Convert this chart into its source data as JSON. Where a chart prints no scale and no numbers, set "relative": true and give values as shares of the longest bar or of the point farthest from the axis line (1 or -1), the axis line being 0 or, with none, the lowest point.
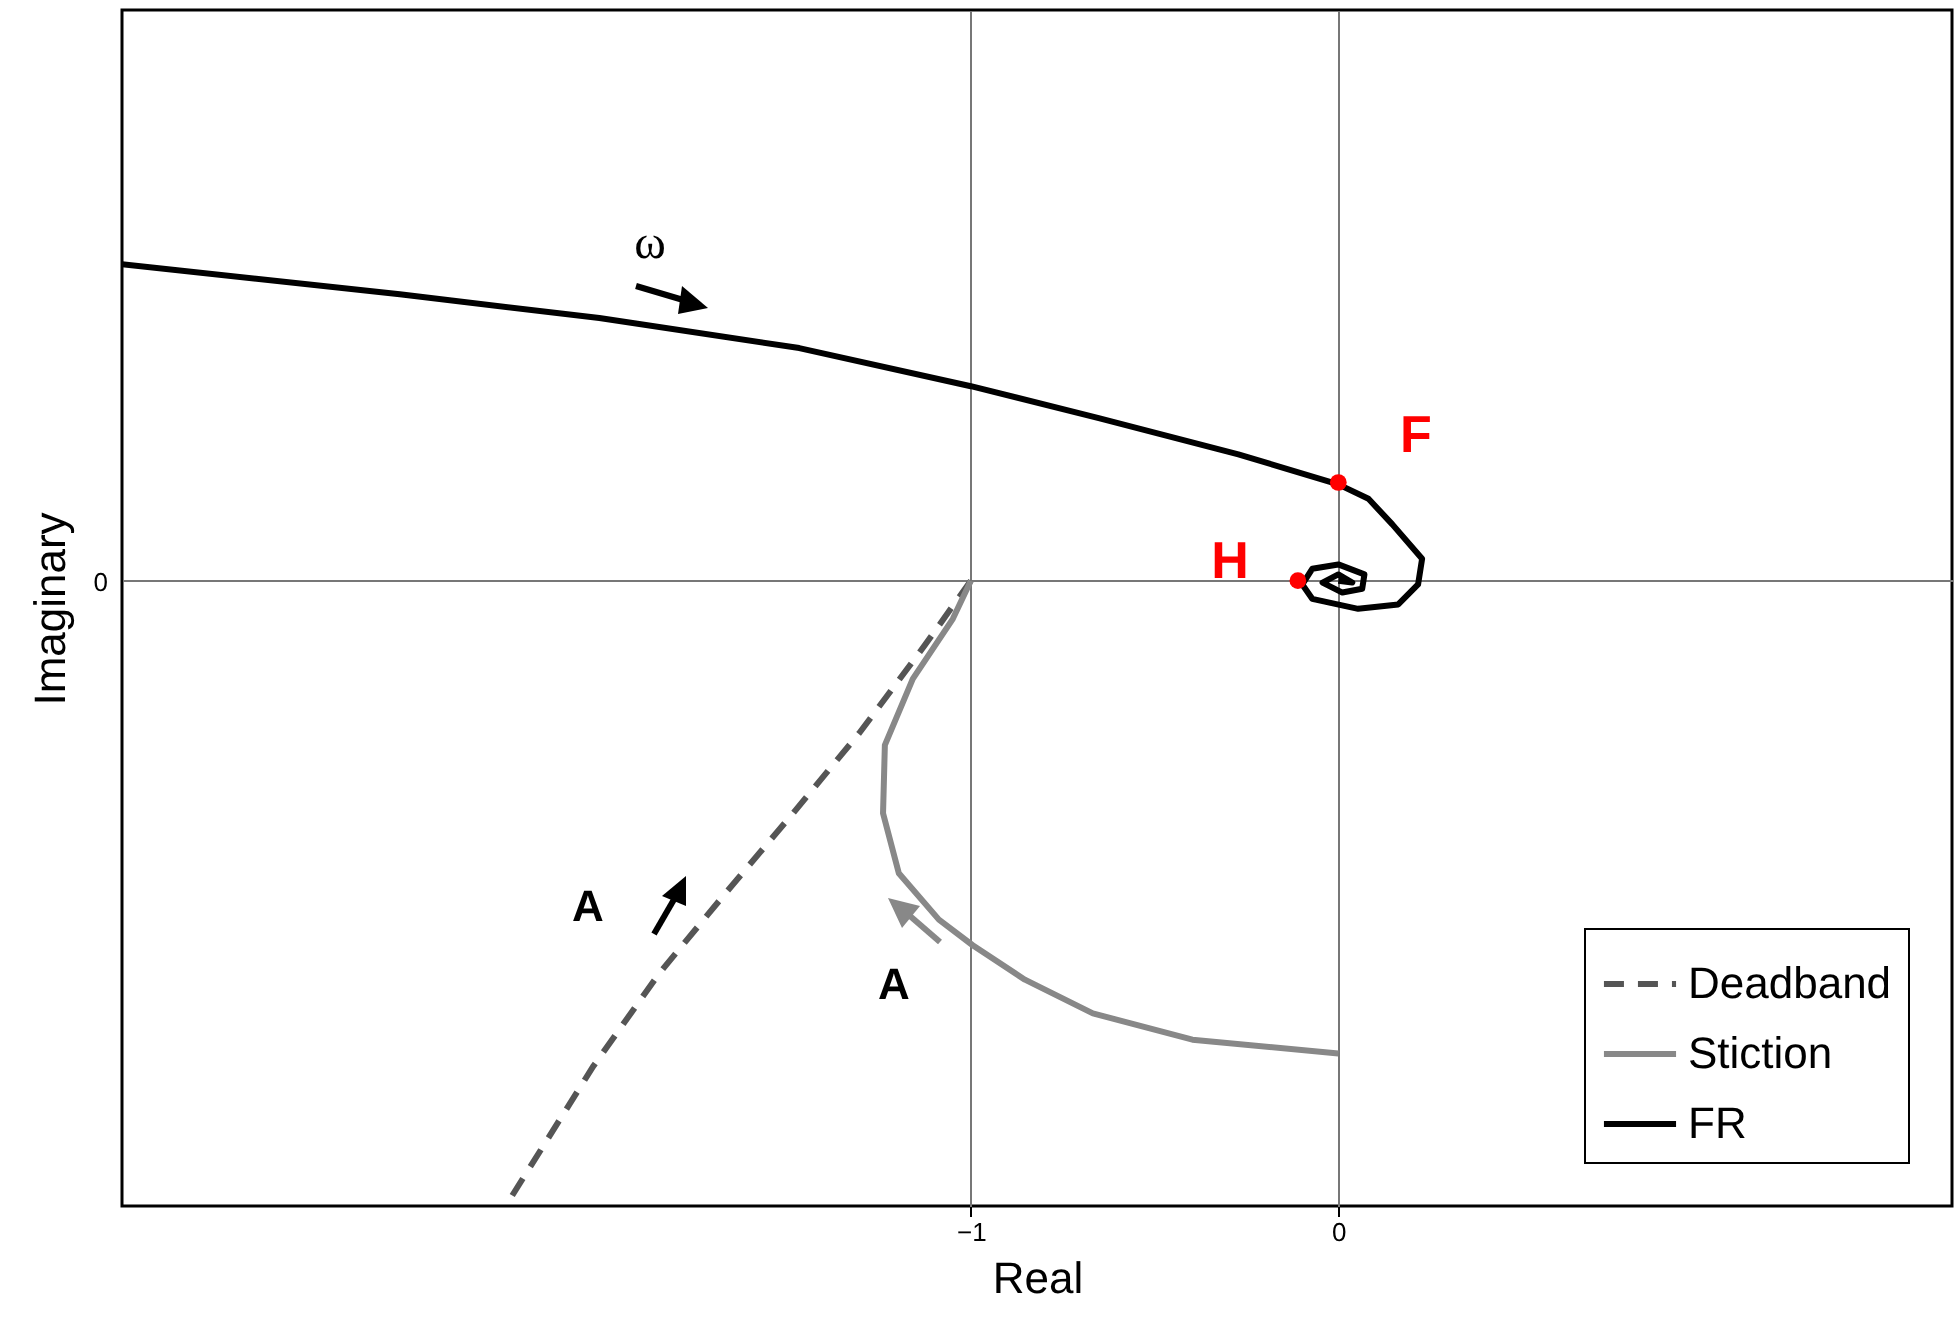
{
  "chart_data": {
    "type": "line",
    "xlabel": "Real",
    "ylabel": "Imaginary",
    "relative": true,
    "xlim": [
      -3.31,
      1.67
    ],
    "xticks": [
      -1,
      0
    ],
    "grid": true,
    "legend": "bottom right",
    "series": [
      {
        "name": "Deadband",
        "color": "#555555",
        "line_style": "dashed",
        "x": [
          -1,
          -1.125,
          -1.304,
          -1.484,
          -1.668,
          -1.848,
          -2.027,
          -2.266
        ],
        "values": [
          0,
          -0.103,
          -0.244,
          -0.372,
          -0.5,
          -0.628,
          -0.776,
          -1
        ]
      },
      {
        "name": "Stiction",
        "color": "#888888",
        "line_style": "solid",
        "x": [
          -1,
          -1.049,
          -1.158,
          -1.234,
          -1.239,
          -1.196,
          -1.087,
          -0.995,
          -0.853,
          -0.668,
          -0.397,
          0
        ],
        "values": [
          0,
          -0.061,
          -0.157,
          -0.263,
          -0.372,
          -0.468,
          -0.542,
          -0.583,
          -0.638,
          -0.692,
          -0.734,
          -0.756
        ]
      },
      {
        "name": "FR",
        "color": "#000000",
        "line_style": "solid",
        "x": [
          -3.31,
          -2.554,
          -2.011,
          -1.467,
          -1,
          -0.652,
          -0.272,
          0,
          0.082,
          0.147,
          0.228,
          0.217,
          0.163,
          0.054,
          -0.071,
          -0.098,
          -0.071,
          0,
          0.071,
          0.065,
          0.011,
          -0.043,
          0,
          0.038,
          0
        ],
        "values": [
          0.506,
          0.458,
          0.42,
          0.372,
          0.311,
          0.26,
          0.202,
          0.154,
          0.131,
          0.09,
          0.035,
          -0.006,
          -0.038,
          -0.045,
          -0.029,
          -0.006,
          0.019,
          0.026,
          0.01,
          -0.013,
          -0.019,
          -0.003,
          0.01,
          -0.003,
          0
        ]
      },
      {
        "type": "scatter",
        "color": "#ff0000",
        "marker": "circle",
        "x": [
          0,
          -0.11
        ],
        "values": [
          0.157,
          0
        ]
      }
    ],
    "annotations": [
      "F",
      "H",
      "ω",
      "A",
      "A",
      "0"
    ]
  }
}
